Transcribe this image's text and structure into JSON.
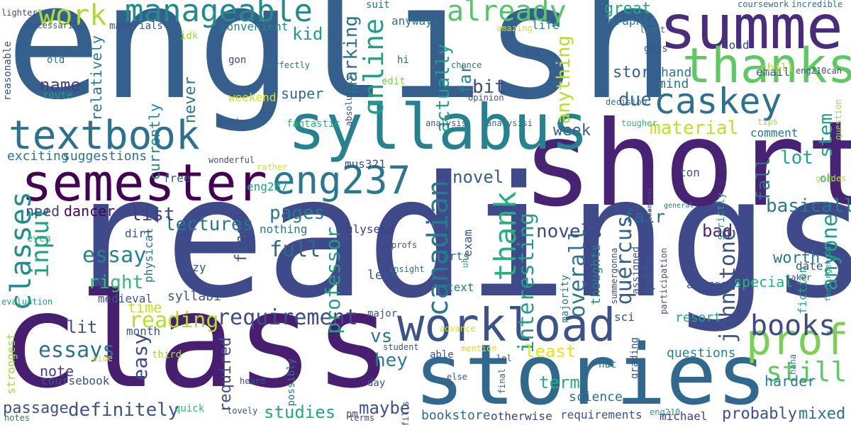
{
  "words": [
    {
      "text": "english",
      "color": "#355f8d"
    },
    {
      "text": "readings",
      "color": "#3e4a89"
    },
    {
      "text": "class",
      "color": "#481f70"
    },
    {
      "text": "short",
      "color": "#482374"
    },
    {
      "text": "stories",
      "color": "#31688e"
    },
    {
      "text": "summer",
      "color": "#472d7b"
    },
    {
      "text": "syllabus",
      "color": "#26828e"
    },
    {
      "text": "thanks",
      "color": "#5ec962"
    },
    {
      "text": "semester",
      "color": "#440154"
    },
    {
      "text": "workload",
      "color": "#3b528b"
    },
    {
      "text": "textbook",
      "color": "#2c728e"
    },
    {
      "text": "eng237",
      "color": "#2a788e"
    },
    {
      "text": "caskey",
      "color": "#2c728e"
    },
    {
      "text": "prof",
      "color": "#7ad151"
    },
    {
      "text": "manageable",
      "color": "#238a8d"
    },
    {
      "text": "classes",
      "color": "#228c8d"
    },
    {
      "text": "already",
      "color": "#54c568"
    },
    {
      "text": "work",
      "color": "#addc30"
    },
    {
      "text": "canadian",
      "color": "#2a788e"
    },
    {
      "text": "thank",
      "color": "#29af7f"
    },
    {
      "text": "online",
      "color": "#1f9e89"
    },
    {
      "text": "books",
      "color": "#3e4a89"
    },
    {
      "text": "still",
      "color": "#5ec962"
    },
    {
      "text": "input",
      "color": "#1fa187"
    },
    {
      "text": "requirement",
      "color": "#3e4a89"
    },
    {
      "text": "essays",
      "color": "#2c728e"
    },
    {
      "text": "reading",
      "color": "#b5de2b"
    },
    {
      "text": "material",
      "color": "#c2df23"
    },
    {
      "text": "essay",
      "color": "#26828e"
    },
    {
      "text": "full",
      "color": "#31688e"
    },
    {
      "text": "interesting",
      "color": "#1f9e89"
    },
    {
      "text": "overall",
      "color": "#2a788e"
    },
    {
      "text": "quercus",
      "color": "#355f8d"
    },
    {
      "text": "johnstone",
      "color": "#3b528b"
    },
    {
      "text": "professor",
      "color": "#1fa187"
    },
    {
      "text": "definitely",
      "color": "#3b528b"
    },
    {
      "text": "anyone",
      "color": "#1fa187"
    },
    {
      "text": "lectures",
      "color": "#2a788e"
    },
    {
      "text": "basically",
      "color": "#2a788e"
    },
    {
      "text": "novels",
      "color": "#3e4a89"
    },
    {
      "text": "easy",
      "color": "#3e4a89"
    },
    {
      "text": "pages",
      "color": "#2a788e"
    },
    {
      "text": "marking",
      "color": "#2c728e"
    },
    {
      "text": "actually",
      "color": "#1f9e89"
    },
    {
      "text": "anything",
      "color": "#b5de2b"
    },
    {
      "text": "bit",
      "color": "#3e4a89"
    },
    {
      "text": "due",
      "color": "#31688e"
    },
    {
      "text": "great",
      "color": "#22a884"
    },
    {
      "text": "right",
      "color": "#35b779"
    },
    {
      "text": "lot",
      "color": "#22a884"
    },
    {
      "text": "fall",
      "color": "#2c728e"
    },
    {
      "text": "stem",
      "color": "#1f9e89"
    },
    {
      "text": "maybe",
      "color": "#3b528b"
    },
    {
      "text": "least",
      "color": "#e5e419"
    },
    {
      "text": "hey",
      "color": "#26828e"
    },
    {
      "text": "studies",
      "color": "#22a884"
    },
    {
      "text": "list",
      "color": "#433e85"
    },
    {
      "text": "need",
      "color": "#433e85"
    },
    {
      "text": "name",
      "color": "#433e85"
    },
    {
      "text": "kid",
      "color": "#1f9e89"
    },
    {
      "text": "week",
      "color": "#355f8d"
    },
    {
      "text": "novel",
      "color": "#355f8d"
    },
    {
      "text": "far",
      "color": "#26828e"
    },
    {
      "text": "vs",
      "color": "#2a788e"
    },
    {
      "text": "fair",
      "color": "#31688e"
    },
    {
      "text": "bad",
      "color": "#482878"
    },
    {
      "text": "story",
      "color": "#355f8d"
    },
    {
      "text": "note",
      "color": "#433e85"
    },
    {
      "text": "lit",
      "color": "#3b528b"
    },
    {
      "text": "dancer",
      "color": "#440154"
    },
    {
      "text": "never",
      "color": "#2a788e"
    },
    {
      "text": "term",
      "color": "#29af7f"
    },
    {
      "text": "mixed",
      "color": "#2c728e"
    },
    {
      "text": "probably",
      "color": "#3b528b"
    },
    {
      "text": "worth",
      "color": "#2a788e"
    },
    {
      "text": "currently",
      "color": "#26828e"
    },
    {
      "text": "relatively",
      "color": "#2a788e"
    },
    {
      "text": "required",
      "color": "#3e4a89"
    },
    {
      "text": "passage",
      "color": "#3b528b"
    },
    {
      "text": "thoughts",
      "color": "#26828e"
    },
    {
      "text": "quite",
      "color": "#38588c"
    },
    {
      "text": "special",
      "color": "#29af7f"
    },
    {
      "text": "harder",
      "color": "#26828e"
    },
    {
      "text": "fine",
      "color": "#38588c"
    },
    {
      "text": "super",
      "color": "#31688e"
    },
    {
      "text": "time",
      "color": "#c2df23"
    },
    {
      "text": "lesk",
      "color": "#38588c"
    },
    {
      "text": "suggestions",
      "color": "#2c728e"
    },
    {
      "text": "exciting",
      "color": "#2a788e"
    },
    {
      "text": "syllabi",
      "color": "#3b528b"
    },
    {
      "text": "questions",
      "color": "#26828e"
    },
    {
      "text": "resort",
      "color": "#22a884"
    },
    {
      "text": "mind",
      "color": "#2c728e"
    },
    {
      "text": "hand",
      "color": "#2a788e"
    },
    {
      "text": "email",
      "color": "#3b528b"
    },
    {
      "text": "load",
      "color": "#3e4a89"
    },
    {
      "text": "chill",
      "color": "#b5de2b"
    },
    {
      "text": "oh",
      "color": "#1f9e89"
    },
    {
      "text": "date",
      "color": "#3b528b"
    },
    {
      "text": "address",
      "color": "#3b528b"
    },
    {
      "text": "ton",
      "color": "#3b528b"
    },
    {
      "text": "comment",
      "color": "#2c728e"
    },
    {
      "text": "fiction",
      "color": "#22a884"
    },
    {
      "text": "coursebook",
      "color": "#3b528b"
    },
    {
      "text": "science",
      "color": "#2c728e"
    },
    {
      "text": "requirements",
      "color": "#3b528b"
    },
    {
      "text": "bookstore",
      "color": "#31688e"
    },
    {
      "text": "otherwise",
      "color": "#433e85"
    },
    {
      "text": "michael",
      "color": "#433e85"
    },
    {
      "text": "month",
      "color": "#38588c"
    },
    {
      "text": "medieval",
      "color": "#3b528b"
    },
    {
      "text": "arts",
      "color": "#2a788e"
    },
    {
      "text": "text",
      "color": "#2c728e"
    },
    {
      "text": "ulysess",
      "color": "#433e85"
    },
    {
      "text": "exam",
      "color": "#3b528b"
    },
    {
      "text": "mus321",
      "color": "#3b528b"
    },
    {
      "text": "eng287",
      "color": "#1f9e89"
    },
    {
      "text": "nothing",
      "color": "#2a788e"
    },
    {
      "text": "free",
      "color": "#3b528b"
    },
    {
      "text": "lazy",
      "color": "#3b528b"
    },
    {
      "text": "dirt",
      "color": "#3b528b"
    },
    {
      "text": "physical",
      "color": "#2a788e"
    },
    {
      "text": "weekend",
      "color": "#d2e21b"
    },
    {
      "text": "route",
      "color": "#1fa187"
    },
    {
      "text": "old",
      "color": "#2c728e"
    },
    {
      "text": "gon",
      "color": "#3e4a89"
    },
    {
      "text": "idk",
      "color": "#a0da39"
    },
    {
      "text": "convenient",
      "color": "#26828e"
    },
    {
      "text": "materials",
      "color": "#3b528b"
    },
    {
      "text": "hi",
      "color": "#355f8d"
    },
    {
      "text": "edit",
      "color": "#7ad151"
    },
    {
      "text": "suit",
      "color": "#2c728e"
    },
    {
      "text": "anyways",
      "color": "#2c728e"
    },
    {
      "text": "life",
      "color": "#2a788e"
    },
    {
      "text": "graphic",
      "color": "#2c728e"
    },
    {
      "text": "guys",
      "color": "#3b528b"
    },
    {
      "text": "reasonable",
      "color": "#3b528b"
    },
    {
      "text": "lighter",
      "color": "#3e4a89"
    },
    {
      "text": "necessarily",
      "color": "#3b528b"
    },
    {
      "text": "evaluation",
      "color": "#1f9e89"
    },
    {
      "text": "even",
      "color": "#35b779"
    },
    {
      "text": "strongest",
      "color": "#a0da39"
    },
    {
      "text": "pm",
      "color": "#3e4a89"
    },
    {
      "text": "quick",
      "color": "#35b779"
    },
    {
      "text": "lovely",
      "color": "#3b528b"
    },
    {
      "text": "heard",
      "color": "#3b528b"
    },
    {
      "text": "notes",
      "color": "#2c728e"
    },
    {
      "text": "terms",
      "color": "#3e4a89"
    },
    {
      "text": "possibly",
      "color": "#2a788e"
    },
    {
      "text": "third",
      "color": "#a0da39"
    },
    {
      "text": "side",
      "color": "#d2e21b"
    },
    {
      "text": "day",
      "color": "#3b528b"
    },
    {
      "text": "able",
      "color": "#3b528b"
    },
    {
      "text": "nut",
      "color": "#2c728e"
    },
    {
      "text": "major",
      "color": "#3b528b"
    },
    {
      "text": "insight",
      "color": "#2c728e"
    },
    {
      "text": "profs",
      "color": "#3b528b"
    },
    {
      "text": "uh",
      "color": "#22a884"
    },
    {
      "text": "student",
      "color": "#3b528b"
    },
    {
      "text": "fills",
      "color": "#3b528b"
    },
    {
      "text": "advance",
      "color": "#d2e21b"
    },
    {
      "text": "mention",
      "color": "#d2e21b"
    },
    {
      "text": "lol",
      "color": "#3b528b"
    },
    {
      "text": "final",
      "color": "#31688e"
    },
    {
      "text": "else",
      "color": "#3b528b"
    },
    {
      "text": "grading",
      "color": "#3b528b"
    },
    {
      "text": "majority",
      "color": "#2a788e"
    },
    {
      "text": "assigned",
      "color": "#3b528b"
    },
    {
      "text": "sci",
      "color": "#3b528b"
    },
    {
      "text": "participation",
      "color": "#3b528b"
    },
    {
      "text": "summergonna",
      "color": "#3b528b"
    },
    {
      "text": "phenomenal",
      "color": "#3b528b"
    },
    {
      "text": "general",
      "color": "#2a788e"
    },
    {
      "text": "strictly",
      "color": "#1f9e89"
    },
    {
      "text": "taker",
      "color": "#3b528b"
    },
    {
      "text": "feelingeng215",
      "color": "#22a884"
    },
    {
      "text": "haha",
      "color": "#26828e"
    },
    {
      "text": "eng210",
      "color": "#1fa187"
    },
    {
      "text": "grades",
      "color": "#c2df23"
    },
    {
      "text": "question",
      "color": "#a0da39"
    },
    {
      "text": "tips",
      "color": "#a0da39"
    },
    {
      "text": "tougher",
      "color": "#35b779"
    },
    {
      "text": "decision",
      "color": "#2a788e"
    },
    {
      "text": "opinion",
      "color": "#3b528b"
    },
    {
      "text": "analysis",
      "color": "#3b528b"
    },
    {
      "text": "analysisi",
      "color": "#2c728e"
    },
    {
      "text": "wonderful",
      "color": "#3b528b"
    },
    {
      "text": "rather",
      "color": "#d2e21b"
    },
    {
      "text": "fantastic",
      "color": "#29af7f"
    },
    {
      "text": "past",
      "color": "#3b528b"
    },
    {
      "text": "lab",
      "color": "#3b528b"
    },
    {
      "text": "chance",
      "color": "#2a788e"
    },
    {
      "text": "absolutely",
      "color": "#3b528b"
    },
    {
      "text": "perfectly",
      "color": "#2c728e"
    },
    {
      "text": "amazing",
      "color": "#d2e21b"
    },
    {
      "text": "light",
      "color": "#2c728e"
    },
    {
      "text": "eng210can",
      "color": "#3e4a89"
    },
    {
      "text": "coursework",
      "color": "#2c728e"
    },
    {
      "text": "incredible",
      "color": "#2a788e"
    }
  ]
}
